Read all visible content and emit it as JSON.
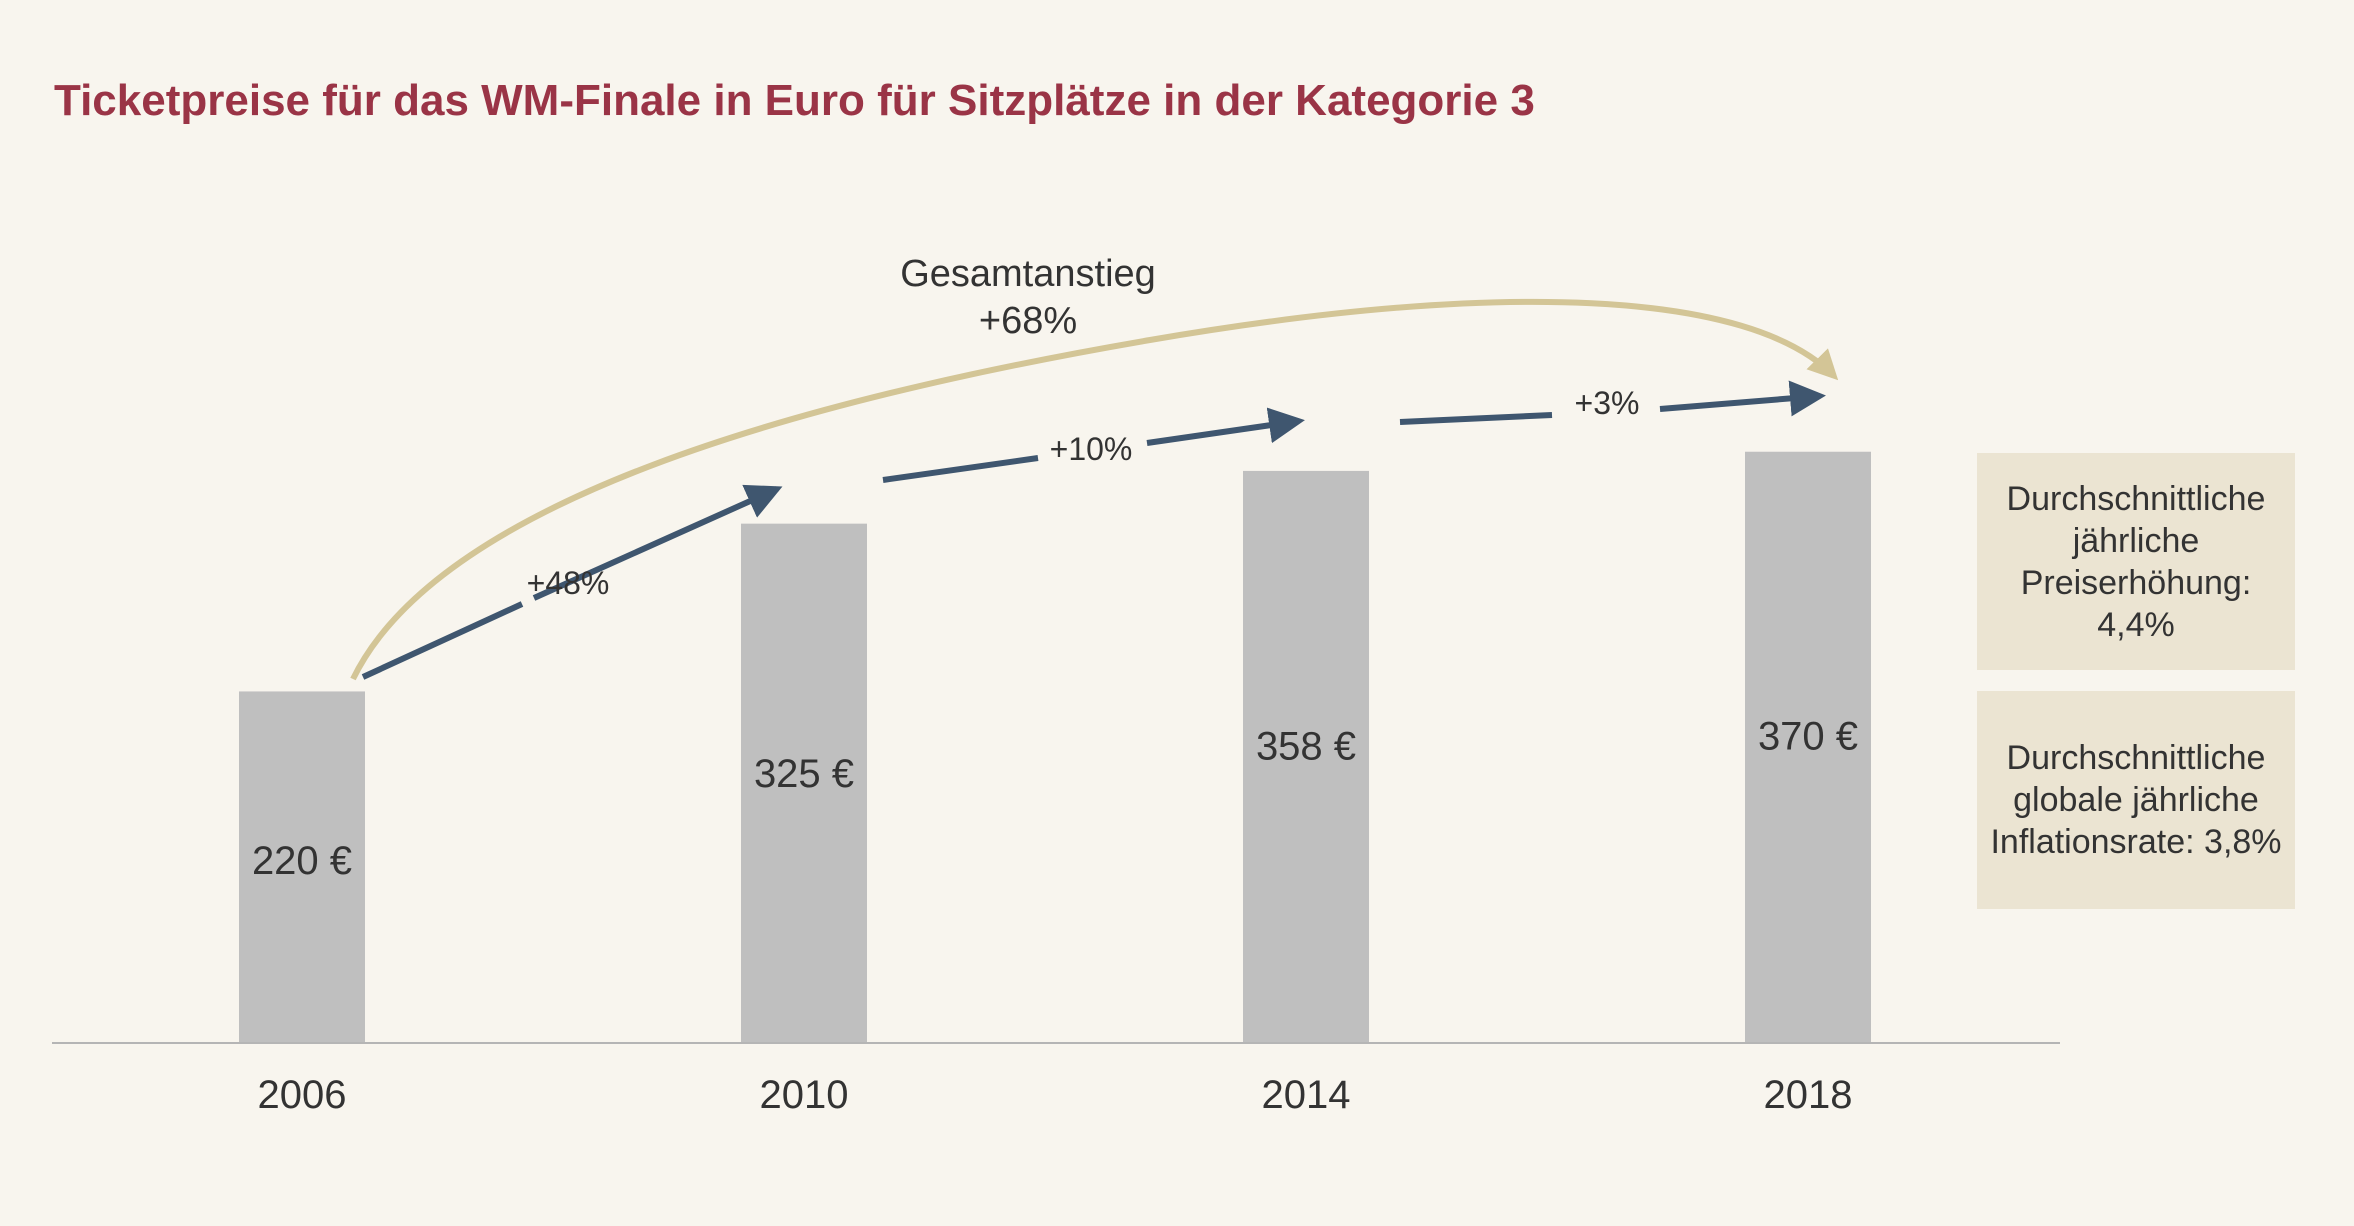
{
  "chart_data": {
    "type": "bar",
    "title": "Ticketpreise für das WM-Finale in Euro für Sitzplätze in der Kategorie 3",
    "categories": [
      "2006",
      "2010",
      "2014",
      "2018"
    ],
    "values": [
      220,
      325,
      358,
      370
    ],
    "value_labels": [
      "220 €",
      "325 €",
      "358 €",
      "370 €"
    ],
    "ylim": [
      0,
      420
    ],
    "bar_color": "#bfbfbf",
    "axis_color": "#b5b5b5",
    "grid": false,
    "step_changes": [
      {
        "from": "2006",
        "to": "2010",
        "label": "+48%"
      },
      {
        "from": "2010",
        "to": "2014",
        "label": "+10%"
      },
      {
        "from": "2014",
        "to": "2018",
        "label": "+3%"
      }
    ],
    "step_arrow_color": "#3f566f",
    "total_change": {
      "label_line1": "Gesamtanstieg",
      "label_line2": "+68%",
      "color": "#d3c596"
    }
  },
  "info_boxes": {
    "annual_increase": "Durchschnittliche jährliche Preiserhöhung: 4,4%",
    "inflation": "Durchschnittliche globale jährliche Inflationsrate: 3,8%"
  },
  "colors": {
    "background": "#f8f5ee",
    "title": "#9a3446",
    "info_box": "#ebe4d2"
  }
}
